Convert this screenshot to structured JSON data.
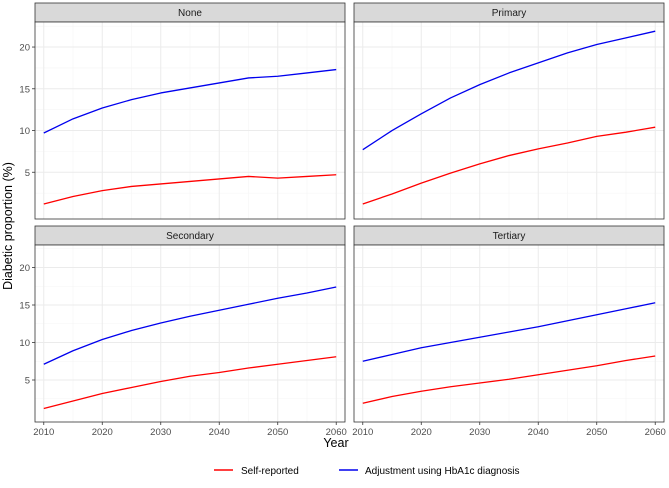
{
  "chart_data": {
    "type": "line",
    "xlabel": "Year",
    "ylabel": "Diabetic proportion (%)",
    "xlim": [
      2008.5,
      2061.5
    ],
    "ylim": [
      -0.6,
      23.0
    ],
    "x_ticks": [
      2010,
      2020,
      2030,
      2040,
      2050,
      2060
    ],
    "y_ticks": [
      5,
      10,
      15,
      20
    ],
    "grid": true,
    "legend_position": "bottom",
    "colors": {
      "Self-reported": "#ff0000",
      "Adjustment using HbA1c diagnosis": "#0000ee",
      "strip_bg": "#d9d9d9",
      "panel_border": "#333333",
      "grid_major": "#ebebeb",
      "grid_minor": "#f5f5f5"
    },
    "legend": [
      "Self-reported",
      "Adjustment using HbA1c diagnosis"
    ],
    "panels": [
      {
        "title": "None",
        "x": [
          2010,
          2015,
          2020,
          2025,
          2030,
          2035,
          2040,
          2045,
          2050,
          2055,
          2060
        ],
        "series": [
          {
            "name": "Self-reported",
            "values": [
              1.2,
              2.1,
              2.8,
              3.3,
              3.6,
              3.9,
              4.2,
              4.5,
              4.3,
              4.5,
              4.7
            ]
          },
          {
            "name": "Adjustment using HbA1c diagnosis",
            "values": [
              9.7,
              11.4,
              12.7,
              13.7,
              14.5,
              15.1,
              15.7,
              16.3,
              16.5,
              16.9,
              17.3
            ]
          }
        ]
      },
      {
        "title": "Primary",
        "x": [
          2010,
          2015,
          2020,
          2025,
          2030,
          2035,
          2040,
          2045,
          2050,
          2055,
          2060
        ],
        "series": [
          {
            "name": "Self-reported",
            "values": [
              1.2,
              2.4,
              3.7,
              4.9,
              6.0,
              7.0,
              7.8,
              8.5,
              9.3,
              9.8,
              10.4
            ]
          },
          {
            "name": "Adjustment using HbA1c diagnosis",
            "values": [
              7.7,
              10.0,
              12.0,
              13.9,
              15.5,
              16.9,
              18.1,
              19.3,
              20.3,
              21.1,
              21.9
            ]
          }
        ]
      },
      {
        "title": "Secondary",
        "x": [
          2010,
          2015,
          2020,
          2025,
          2030,
          2035,
          2040,
          2045,
          2050,
          2055,
          2060
        ],
        "series": [
          {
            "name": "Self-reported",
            "values": [
              1.2,
              2.2,
              3.2,
              4.0,
              4.8,
              5.5,
              6.0,
              6.6,
              7.1,
              7.6,
              8.1
            ]
          },
          {
            "name": "Adjustment using HbA1c diagnosis",
            "values": [
              7.1,
              8.9,
              10.4,
              11.6,
              12.6,
              13.5,
              14.3,
              15.1,
              15.9,
              16.6,
              17.4
            ]
          }
        ]
      },
      {
        "title": "Tertiary",
        "x": [
          2010,
          2015,
          2020,
          2025,
          2030,
          2035,
          2040,
          2045,
          2050,
          2055,
          2060
        ],
        "series": [
          {
            "name": "Self-reported",
            "values": [
              1.9,
              2.8,
              3.5,
              4.1,
              4.6,
              5.1,
              5.7,
              6.3,
              6.9,
              7.6,
              8.2
            ]
          },
          {
            "name": "Adjustment using HbA1c diagnosis",
            "values": [
              7.5,
              8.4,
              9.3,
              10.0,
              10.7,
              11.4,
              12.1,
              12.9,
              13.7,
              14.5,
              15.3
            ]
          }
        ]
      }
    ]
  }
}
